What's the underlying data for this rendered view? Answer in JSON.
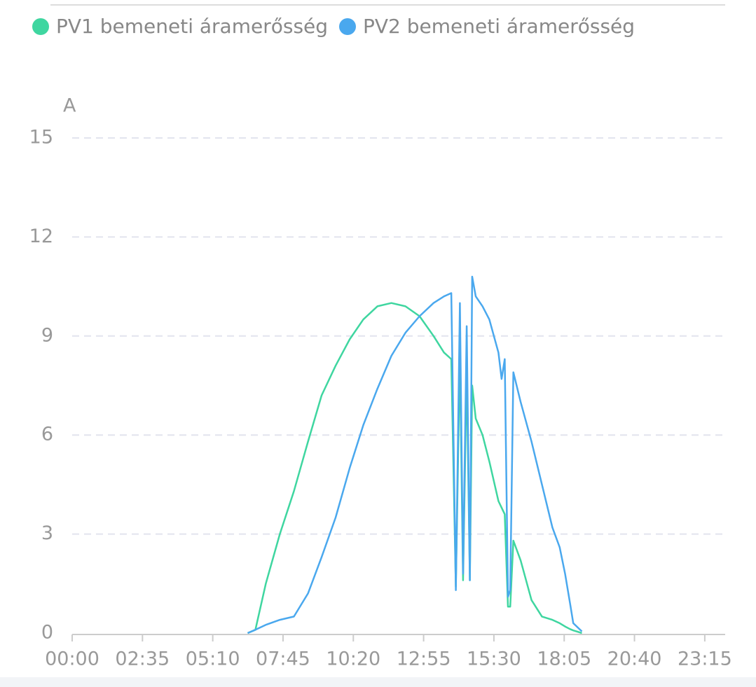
{
  "chart_data": {
    "type": "line",
    "y_unit": "A",
    "x": [
      387,
      404,
      427,
      458,
      489,
      520,
      550,
      581,
      612,
      642,
      673,
      704,
      735,
      766,
      797,
      820,
      836,
      846,
      855,
      862,
      870,
      877,
      882,
      890,
      905,
      920,
      940,
      947,
      954,
      961,
      966,
      973,
      989,
      1013,
      1036,
      1059,
      1075,
      1087,
      1098,
      1105,
      1124
    ],
    "series": [
      {
        "name": "PV1 bemeneti áramerősség",
        "color": "#3fd6a0",
        "values": [
          0,
          0.1,
          1.5,
          3.0,
          4.3,
          5.8,
          7.2,
          8.1,
          8.9,
          9.5,
          9.9,
          10.0,
          9.9,
          9.6,
          9.0,
          8.5,
          8.3,
          1.4,
          8.4,
          1.6,
          8.0,
          1.6,
          7.5,
          6.5,
          6.0,
          5.2,
          4.0,
          3.8,
          3.6,
          0.8,
          0.8,
          2.8,
          2.2,
          1.0,
          0.5,
          0.4,
          0.3,
          0.2,
          0.12,
          0.08,
          0
        ]
      },
      {
        "name": "PV2 bemeneti áramerősség",
        "color": "#4aa8ee",
        "values": [
          0,
          0.1,
          0.25,
          0.4,
          0.5,
          1.2,
          2.3,
          3.5,
          5.0,
          6.3,
          7.4,
          8.4,
          9.1,
          9.6,
          10.0,
          10.2,
          10.3,
          1.3,
          10.0,
          1.8,
          9.3,
          1.6,
          10.8,
          10.2,
          9.9,
          9.5,
          8.5,
          7.7,
          8.3,
          1.1,
          1.3,
          7.9,
          7.0,
          5.8,
          4.5,
          3.2,
          2.6,
          1.8,
          0.9,
          0.3,
          0.05
        ]
      }
    ],
    "xlim": [
      0,
      1440
    ],
    "xticks": [
      {
        "value": 0,
        "label": "00:00"
      },
      {
        "value": 155,
        "label": "02:35"
      },
      {
        "value": 310,
        "label": "05:10"
      },
      {
        "value": 465,
        "label": "07:45"
      },
      {
        "value": 620,
        "label": "10:20"
      },
      {
        "value": 775,
        "label": "12:55"
      },
      {
        "value": 930,
        "label": "15:30"
      },
      {
        "value": 1085,
        "label": "18:05"
      },
      {
        "value": 1240,
        "label": "20:40"
      },
      {
        "value": 1395,
        "label": "23:15"
      }
    ],
    "ylim": [
      0,
      15
    ],
    "yticks": [
      0,
      3,
      6,
      9,
      12,
      15
    ],
    "grid": true
  }
}
